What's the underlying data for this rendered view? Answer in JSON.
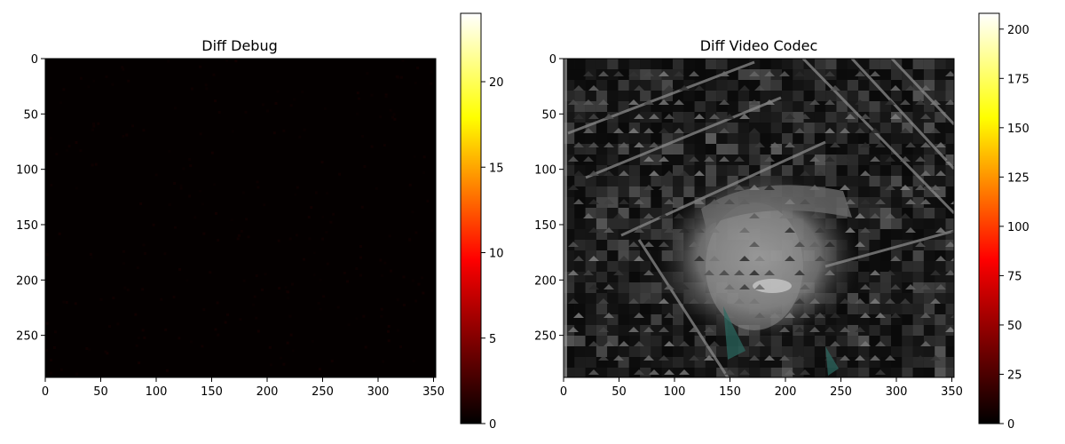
{
  "chart_data": [
    {
      "type": "heatmap",
      "title": "Diff Debug",
      "image_size": [
        352,
        288
      ],
      "xlim": [
        0,
        352
      ],
      "ylim": [
        288,
        0
      ],
      "x_ticks": [
        0,
        50,
        100,
        150,
        200,
        250,
        300,
        350
      ],
      "y_ticks": [
        0,
        50,
        100,
        150,
        200,
        250
      ],
      "colormap": "hot",
      "colorbar": {
        "range": [
          0,
          24
        ],
        "ticks": [
          0,
          5,
          10,
          15,
          20
        ]
      },
      "content": "near-zero difference everywhere (almost black)"
    },
    {
      "type": "heatmap",
      "title": "Diff Video Codec",
      "image_size": [
        352,
        288
      ],
      "xlim": [
        0,
        352
      ],
      "ylim": [
        288,
        0
      ],
      "x_ticks": [
        0,
        50,
        100,
        150,
        200,
        250,
        300,
        350
      ],
      "y_ticks": [
        0,
        50,
        100,
        150,
        200,
        250
      ],
      "colormap": "hot",
      "colorbar": {
        "range": [
          0,
          208
        ],
        "ticks": [
          0,
          25,
          50,
          75,
          100,
          125,
          150,
          175,
          200
        ]
      },
      "content": "grayscale blocky codec residual showing a man's face in a hat with diagonal structural lines"
    }
  ],
  "colors": {
    "hot_stops": [
      "#000000",
      "#e60000",
      "#ff0000",
      "#ffd200",
      "#ffffff"
    ],
    "background": "#000000"
  }
}
